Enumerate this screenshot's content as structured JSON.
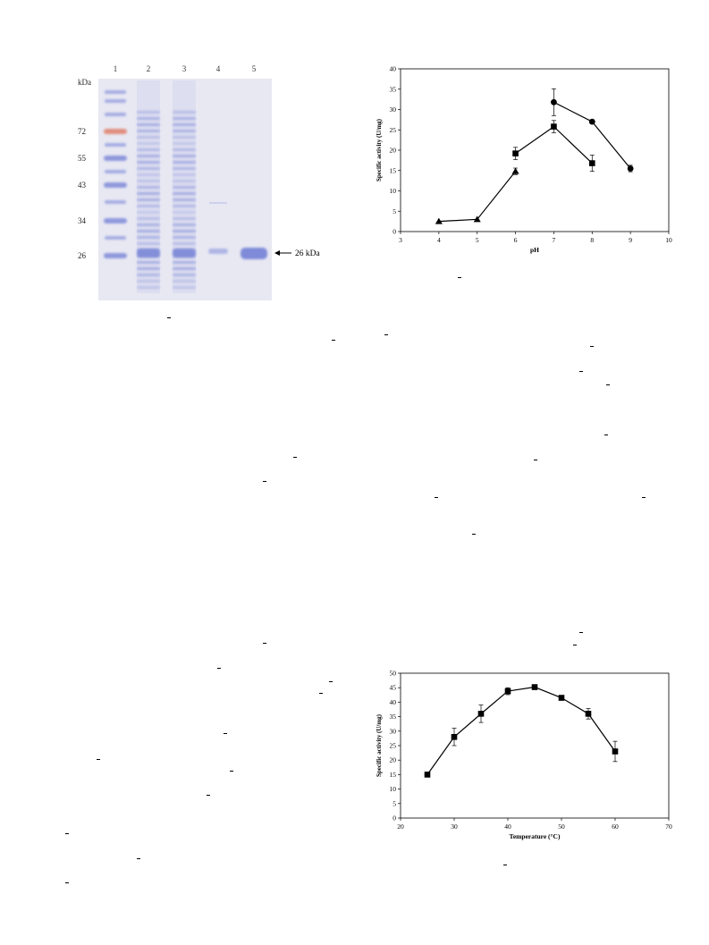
{
  "gel": {
    "lanes": [
      "1",
      "2",
      "3",
      "4",
      "5"
    ],
    "unit": "kDa",
    "markers": [
      {
        "label": "72",
        "color": "#e0806a"
      },
      {
        "label": "55",
        "color": "#7f8bd8"
      },
      {
        "label": "43",
        "color": "#7f8bd8"
      },
      {
        "label": "34",
        "color": "#7f8bd8"
      },
      {
        "label": "26",
        "color": "#7f8bd8"
      }
    ],
    "arrow_label": "26 kDa",
    "colors": {
      "background": "#e8e8f3",
      "band": "#7f8bd8",
      "marker_red": "#e0806a"
    }
  },
  "chart_data": [
    {
      "type": "line",
      "title": "",
      "xlabel": "pH",
      "ylabel": "Specific activity (U/mg)",
      "xlim": [
        3,
        10
      ],
      "ylim": [
        0,
        40
      ],
      "xticks": [
        3,
        4,
        5,
        6,
        7,
        8,
        9,
        10
      ],
      "yticks": [
        0,
        5,
        10,
        15,
        20,
        25,
        30,
        35,
        40
      ],
      "grid": false,
      "series": [
        {
          "marker": "triangle",
          "x": [
            4,
            5,
            6
          ],
          "y": [
            2.5,
            3.0,
            14.8
          ],
          "err": [
            0,
            0,
            0.8
          ]
        },
        {
          "marker": "square",
          "x": [
            6,
            7,
            8
          ],
          "y": [
            19.2,
            25.8,
            16.8
          ],
          "err": [
            1.5,
            1.5,
            2.0
          ]
        },
        {
          "marker": "circle",
          "x": [
            7,
            8,
            9
          ],
          "y": [
            31.8,
            27.0,
            15.5
          ],
          "err": [
            3.3,
            0.5,
            0.8
          ]
        }
      ]
    },
    {
      "type": "line",
      "title": "",
      "xlabel": "Temperature (°C)",
      "ylabel": "Specific activity (U/mg)",
      "xlim": [
        20,
        70
      ],
      "ylim": [
        0,
        50
      ],
      "xticks": [
        20,
        30,
        40,
        50,
        60,
        70
      ],
      "yticks": [
        0,
        5,
        10,
        15,
        20,
        25,
        30,
        35,
        40,
        45,
        50
      ],
      "grid": false,
      "series": [
        {
          "marker": "square",
          "x": [
            25,
            30,
            35,
            40,
            45,
            50,
            55,
            60
          ],
          "y": [
            15.0,
            28.0,
            36.0,
            43.8,
            45.2,
            41.5,
            36.0,
            23.0
          ],
          "err": [
            0.6,
            3.0,
            3.0,
            1.2,
            0.5,
            0.5,
            1.8,
            3.5
          ]
        }
      ]
    }
  ]
}
